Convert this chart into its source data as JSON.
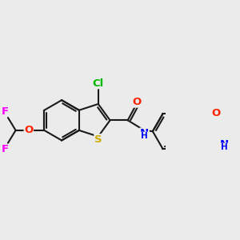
{
  "bg_color": "#ebebeb",
  "bond_color": "#1a1a1a",
  "bond_width": 1.5,
  "atom_colors": {
    "Cl": "#00bb00",
    "S": "#ccaa00",
    "O": "#ff2200",
    "N": "#0000ff",
    "F": "#ff00ff",
    "C": "#1a1a1a"
  },
  "font_size": 8.5,
  "fig_size": [
    3.0,
    3.0
  ],
  "dpi": 100
}
